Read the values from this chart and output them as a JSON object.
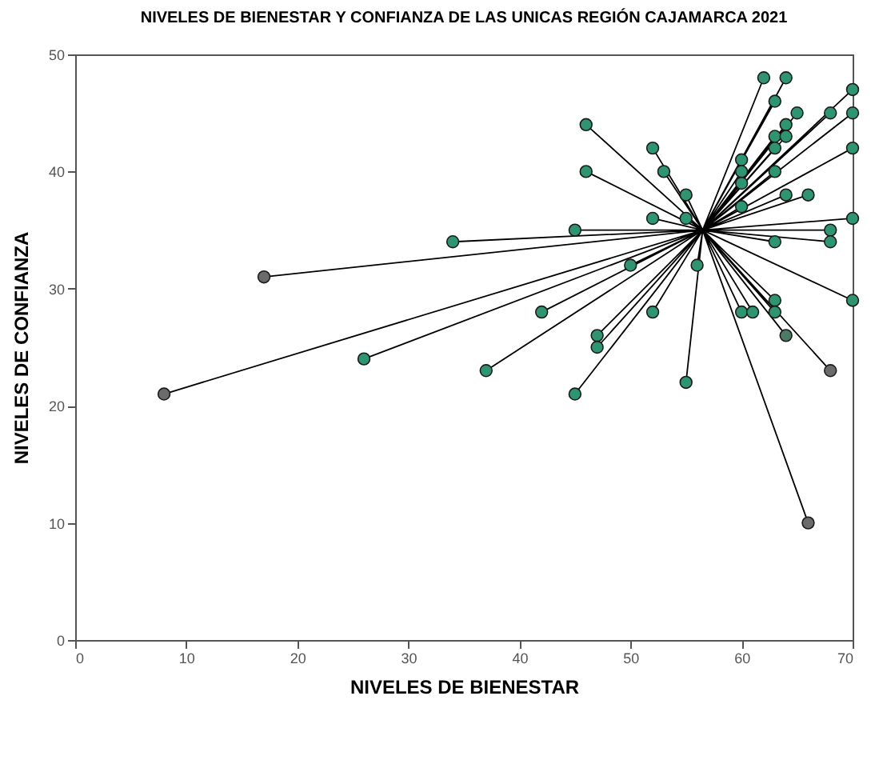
{
  "chart_data": {
    "type": "scatter",
    "title": "NIVELES DE BIENESTAR Y CONFIANZA DE LAS UNICAS REGIÓN CAJAMARCA 2021",
    "xlabel": "NIVELES DE BIENESTAR",
    "ylabel": "NIVELES DE CONFIANZA",
    "xlim": [
      0,
      70
    ],
    "xticks": [
      0,
      10,
      20,
      30,
      40,
      50,
      60,
      70
    ],
    "ylim": [
      0,
      50
    ],
    "yticks": [
      0,
      10,
      20,
      30,
      40,
      50
    ],
    "grid": false,
    "marker": "circle",
    "series": [
      {
        "type": "line",
        "marker": "none",
        "color": "#000000",
        "x": [
          56.5,
          17,
          56.5,
          8,
          56.5,
          26,
          56.5,
          62,
          56.5,
          64,
          56.5,
          70,
          56.5,
          63,
          56.5,
          65,
          56.5,
          68,
          56.5,
          70,
          56.5,
          64,
          56.5,
          63,
          56.5,
          64,
          56.5,
          63,
          56.5,
          70,
          56.5,
          46,
          56.5,
          52,
          56.5,
          46,
          56.5,
          53,
          56.5,
          60,
          56.5,
          60,
          56.5,
          60,
          56.5,
          63,
          56.5,
          60,
          56.5,
          55,
          56.5,
          52,
          56.5,
          55,
          56.5,
          64,
          56.5,
          66,
          56.5,
          70,
          56.5,
          68,
          56.5,
          68,
          56.5,
          63,
          56.5,
          45,
          56.5,
          34,
          56.5,
          56,
          56.5,
          50,
          56.5,
          42,
          56.5,
          52,
          56.5,
          60,
          56.5,
          61,
          56.5,
          63,
          56.5,
          63,
          56.5,
          70,
          56.5,
          64,
          56.5,
          47,
          56.5,
          47,
          56.5,
          37,
          56.5,
          68,
          56.5,
          45,
          56.5,
          55,
          56.5,
          66
        ],
        "values": [
          35,
          31,
          35,
          21,
          35,
          24,
          35,
          48,
          35,
          48,
          35,
          47,
          35,
          46,
          35,
          45,
          35,
          45,
          35,
          45,
          35,
          44,
          35,
          43,
          35,
          43,
          35,
          42,
          35,
          42,
          35,
          44,
          35,
          42,
          35,
          40,
          35,
          40,
          35,
          41,
          35,
          40,
          35,
          39,
          35,
          40,
          35,
          37,
          35,
          38,
          35,
          36,
          35,
          36,
          35,
          38,
          35,
          38,
          35,
          36,
          35,
          35,
          35,
          34,
          35,
          34,
          35,
          35,
          35,
          34,
          35,
          32,
          35,
          32,
          35,
          28,
          35,
          28,
          35,
          28,
          35,
          28,
          35,
          29,
          35,
          28,
          35,
          29,
          35,
          26,
          35,
          26,
          35,
          25,
          35,
          23,
          35,
          23,
          35,
          21,
          35,
          22,
          35,
          10
        ]
      },
      {
        "x": [
          17,
          8,
          26,
          62,
          64,
          70,
          63,
          65,
          68,
          70,
          64,
          63,
          64,
          63,
          70,
          46,
          52,
          46,
          53,
          60,
          60,
          60,
          63,
          60,
          55,
          52,
          55,
          64,
          66,
          70,
          68,
          68,
          63,
          45,
          34,
          56,
          50,
          42,
          52,
          60,
          61,
          63,
          63,
          70,
          64,
          47,
          47,
          37,
          68,
          45,
          55,
          66
        ],
        "values": [
          31,
          21,
          24,
          48,
          48,
          47,
          46,
          45,
          45,
          45,
          44,
          43,
          43,
          42,
          42,
          44,
          42,
          40,
          40,
          41,
          40,
          39,
          40,
          37,
          38,
          36,
          36,
          38,
          38,
          36,
          35,
          34,
          34,
          35,
          34,
          32,
          32,
          28,
          28,
          28,
          28,
          29,
          28,
          29,
          26,
          26,
          25,
          23,
          23,
          21,
          22,
          10
        ],
        "colors": [
          "#6b6b6b",
          "#6b6b6b",
          "#2f9470",
          "#2f9470",
          "#2f9470",
          "#2f9470",
          "#2f9470",
          "#2f9470",
          "#2f9470",
          "#2f9470",
          "#2f9470",
          "#2f9470",
          "#2f9470",
          "#2f9470",
          "#2f9470",
          "#2f9470",
          "#2f9470",
          "#2f9470",
          "#2f9470",
          "#2f9470",
          "#2f9470",
          "#2f9470",
          "#2f9470",
          "#2f9470",
          "#2f9470",
          "#2f9470",
          "#2f9470",
          "#2f9470",
          "#2f9470",
          "#2f9470",
          "#2f9470",
          "#2f9470",
          "#2f9470",
          "#2f9470",
          "#2f9470",
          "#2f9470",
          "#2f9470",
          "#2f9470",
          "#2f9470",
          "#2f9470",
          "#2f9470",
          "#2f9470",
          "#2f9470",
          "#2f9470",
          "#4d7a66",
          "#2f9470",
          "#2f9470",
          "#2f9470",
          "#6b6b6b",
          "#2f9470",
          "#2f9470",
          "#6b6b6b"
        ]
      }
    ]
  }
}
